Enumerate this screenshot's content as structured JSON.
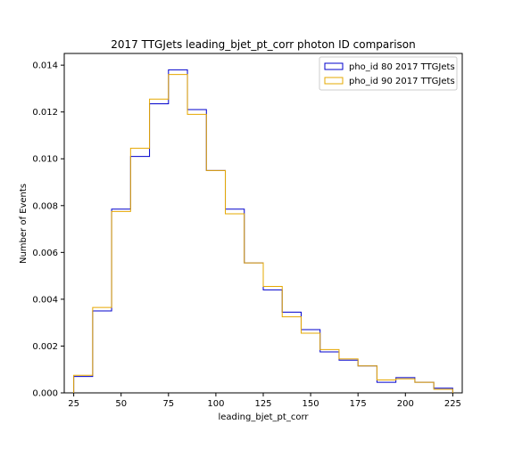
{
  "chart_data": {
    "type": "histogram-step",
    "title": "2017 TTGJets leading_bjet_pt_corr photon ID comparison",
    "xlabel": "leading_bjet_pt_corr",
    "ylabel": "Number of Events",
    "xlim": [
      20,
      230
    ],
    "ylim": [
      0,
      0.0145
    ],
    "xticks": [
      25,
      50,
      75,
      100,
      125,
      150,
      175,
      200,
      225
    ],
    "yticks": [
      0,
      0.002,
      0.004,
      0.006,
      0.008,
      0.01,
      0.012,
      0.014
    ],
    "ytick_labels": [
      "0.000",
      "0.002",
      "0.004",
      "0.006",
      "0.008",
      "0.010",
      "0.012",
      "0.014"
    ],
    "bin_edges": [
      25,
      35,
      45,
      55,
      65,
      75,
      85,
      95,
      105,
      115,
      125,
      135,
      145,
      155,
      165,
      175,
      185,
      195,
      205,
      215,
      225
    ],
    "legend_position": "top-right",
    "series": [
      {
        "name": "pho_id 80 2017 TTGJets",
        "color": "#0000cc",
        "values": [
          0.0007,
          0.0035,
          0.00785,
          0.0101,
          0.01235,
          0.0138,
          0.0121,
          0.0095,
          0.00785,
          0.00555,
          0.0044,
          0.00345,
          0.0027,
          0.00175,
          0.0014,
          0.00115,
          0.00045,
          0.00065,
          0.00045,
          0.0002
        ]
      },
      {
        "name": "pho_id 90 2017 TTGJets",
        "color": "#e6a800",
        "values": [
          0.00075,
          0.00365,
          0.00775,
          0.01045,
          0.01255,
          0.0136,
          0.0119,
          0.0095,
          0.00765,
          0.00555,
          0.00455,
          0.00325,
          0.00255,
          0.00185,
          0.00145,
          0.00115,
          0.00055,
          0.0006,
          0.00045,
          0.00015
        ]
      }
    ]
  }
}
